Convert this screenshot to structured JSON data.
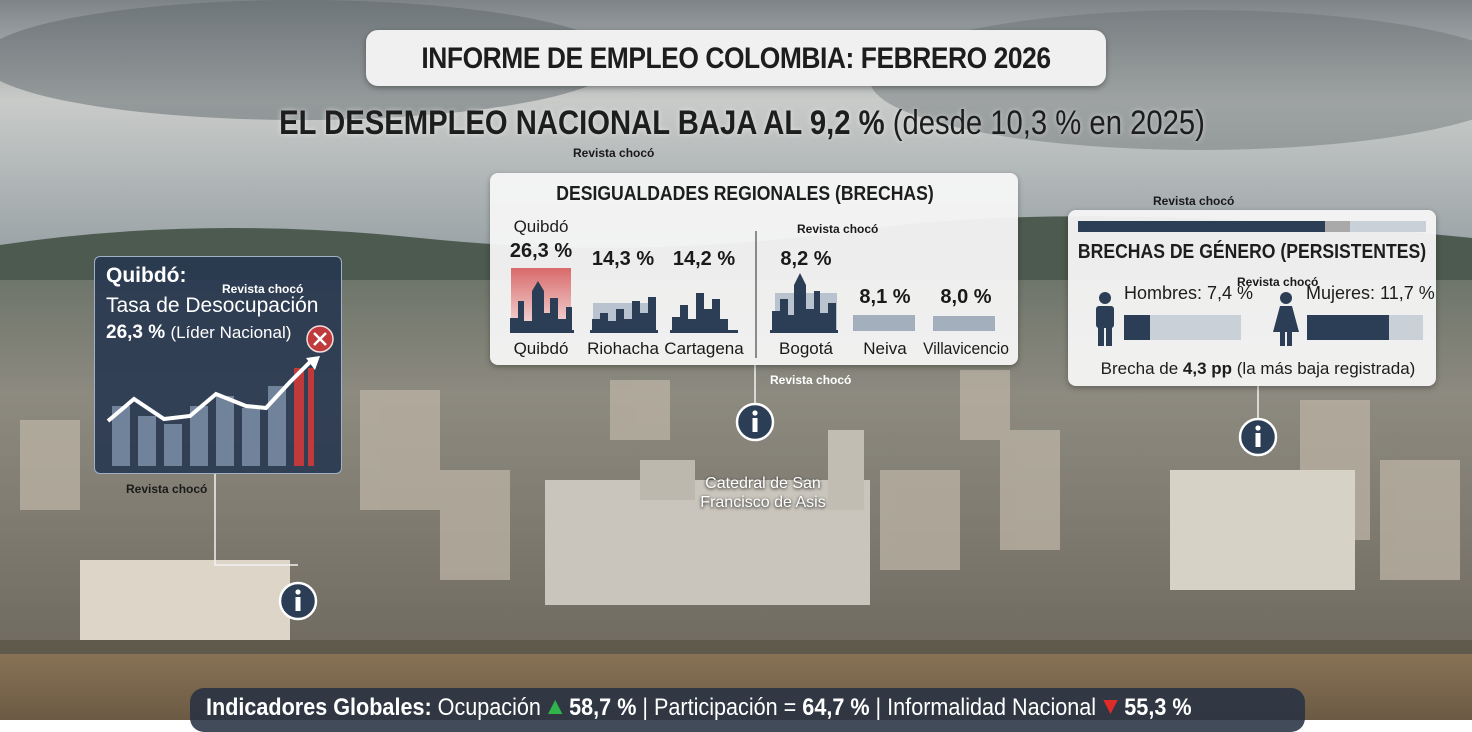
{
  "header": {
    "title": "INFORME DE EMPLEO COLOMBIA: FEBRERO 2026",
    "headline_bold": "EL DESEMPLEO NACIONAL BAJA AL 9,2 %",
    "headline_rest": "(desde 10,3 % en 2025)"
  },
  "watermark": "Revista chocó",
  "quibdo_card": {
    "title": "Quibdó:",
    "subtitle": "Tasa de Desocupación",
    "value": "26,3 %",
    "note": "(Líder Nacional)"
  },
  "regional_card": {
    "title": "DESIGUALDADES REGIONALES (BRECHAS)",
    "highlight_label": "Quibdó",
    "cities": [
      {
        "name": "Quibdó",
        "value": "26,3 %"
      },
      {
        "name": "Riohacha",
        "value": "14,3 %"
      },
      {
        "name": "Cartagena",
        "value": "14,2 %"
      },
      {
        "name": "Bogotá",
        "value": "8,2 %"
      },
      {
        "name": "Neiva",
        "value": "8,1 %"
      },
      {
        "name": "Villavicencio",
        "value": "8,0 %"
      }
    ]
  },
  "gender_card": {
    "title": "BRECHAS DE GÉNERO (PERSISTENTES)",
    "men": "Hombres: 7,4 %",
    "women": "Mujeres: 11,7 %",
    "gap_prefix": "Brecha de",
    "gap_value": "4,3 pp",
    "gap_suffix": "(la más baja registrada)"
  },
  "landmark": {
    "lines": [
      "Catedral de San",
      "Francisco de Asis"
    ]
  },
  "footer": {
    "label": "Indicadores Globales:",
    "separator": "|",
    "items": [
      {
        "name": "Ocupación",
        "value": "58,7 %"
      },
      {
        "name": "Participación =",
        "value": "64,7 %"
      },
      {
        "name": "Informalidad Nacional",
        "value": "55,3 %"
      }
    ]
  }
}
